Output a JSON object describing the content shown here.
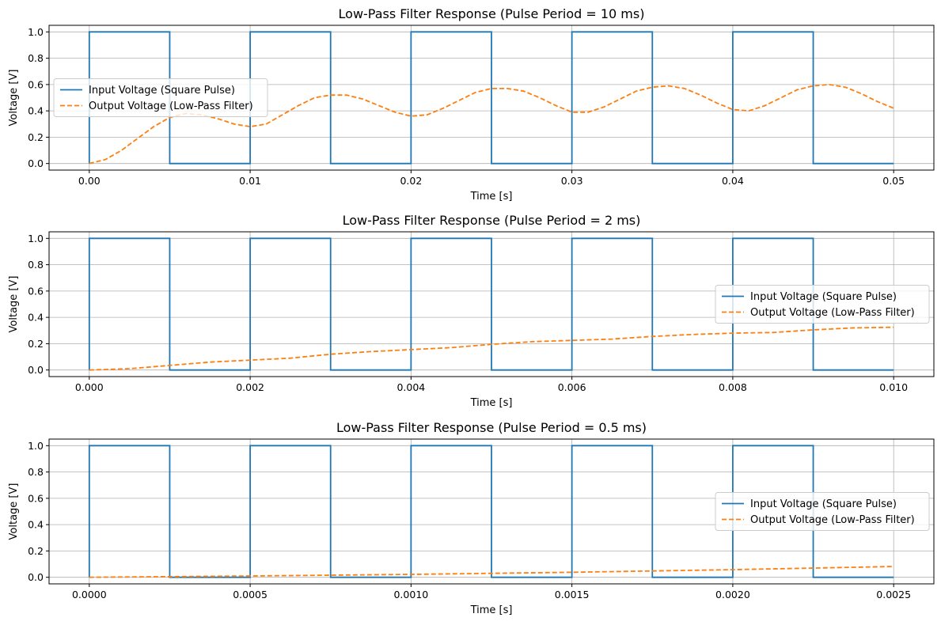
{
  "chart_data": [
    {
      "type": "line",
      "title": "Low-Pass Filter Response (Pulse Period = 10 ms)",
      "xlabel": "Time [s]",
      "ylabel": "Voltage [V]",
      "xlim": [
        -0.0025,
        0.0525
      ],
      "ylim": [
        -0.05,
        1.05
      ],
      "xticks": [
        0.0,
        0.01,
        0.02,
        0.03,
        0.04,
        0.05
      ],
      "xtick_labels": [
        "0.00",
        "0.01",
        "0.02",
        "0.03",
        "0.04",
        "0.05"
      ],
      "yticks": [
        0.0,
        0.2,
        0.4,
        0.6,
        0.8,
        1.0
      ],
      "ytick_labels": [
        "0.0",
        "0.2",
        "0.4",
        "0.6",
        "0.8",
        "1.0"
      ],
      "grid": true,
      "legend_position": "center-left",
      "series": [
        {
          "name": "Input Voltage (Square Pulse)",
          "style": "solid",
          "color": "#1f77b4",
          "x": [
            0,
            0,
            0.005,
            0.005,
            0.01,
            0.01,
            0.015,
            0.015,
            0.02,
            0.02,
            0.025,
            0.025,
            0.03,
            0.03,
            0.035,
            0.035,
            0.04,
            0.04,
            0.045,
            0.045,
            0.05
          ],
          "y": [
            0,
            1,
            1,
            0,
            0,
            1,
            1,
            0,
            0,
            1,
            1,
            0,
            0,
            1,
            1,
            0,
            0,
            1,
            1,
            0,
            0
          ]
        },
        {
          "name": "Output Voltage (Low-Pass Filter)",
          "style": "dashed",
          "color": "#ff7f0e",
          "x": [
            0,
            0.001,
            0.002,
            0.003,
            0.004,
            0.005,
            0.006,
            0.007,
            0.008,
            0.009,
            0.01,
            0.011,
            0.012,
            0.013,
            0.014,
            0.015,
            0.016,
            0.017,
            0.018,
            0.019,
            0.02,
            0.021,
            0.022,
            0.023,
            0.024,
            0.025,
            0.026,
            0.027,
            0.028,
            0.029,
            0.03,
            0.031,
            0.032,
            0.033,
            0.034,
            0.035,
            0.036,
            0.037,
            0.038,
            0.039,
            0.04,
            0.041,
            0.042,
            0.043,
            0.044,
            0.045,
            0.046,
            0.047,
            0.048,
            0.049,
            0.05
          ],
          "y": [
            0,
            0.03,
            0.1,
            0.19,
            0.28,
            0.35,
            0.38,
            0.37,
            0.34,
            0.3,
            0.28,
            0.3,
            0.37,
            0.44,
            0.5,
            0.52,
            0.52,
            0.49,
            0.44,
            0.39,
            0.36,
            0.37,
            0.42,
            0.48,
            0.54,
            0.57,
            0.57,
            0.55,
            0.5,
            0.44,
            0.39,
            0.39,
            0.43,
            0.49,
            0.55,
            0.58,
            0.59,
            0.57,
            0.52,
            0.46,
            0.41,
            0.4,
            0.44,
            0.5,
            0.56,
            0.59,
            0.6,
            0.58,
            0.53,
            0.47,
            0.42
          ]
        }
      ]
    },
    {
      "type": "line",
      "title": "Low-Pass Filter Response (Pulse Period = 2 ms)",
      "xlabel": "Time [s]",
      "ylabel": "Voltage [V]",
      "xlim": [
        -0.0005,
        0.0105
      ],
      "ylim": [
        -0.05,
        1.05
      ],
      "xticks": [
        0.0,
        0.002,
        0.004,
        0.006,
        0.008,
        0.01
      ],
      "xtick_labels": [
        "0.000",
        "0.002",
        "0.004",
        "0.006",
        "0.008",
        "0.010"
      ],
      "yticks": [
        0.0,
        0.2,
        0.4,
        0.6,
        0.8,
        1.0
      ],
      "ytick_labels": [
        "0.0",
        "0.2",
        "0.4",
        "0.6",
        "0.8",
        "1.0"
      ],
      "grid": true,
      "legend_position": "center-right",
      "series": [
        {
          "name": "Input Voltage (Square Pulse)",
          "style": "solid",
          "color": "#1f77b4",
          "x": [
            0,
            0,
            0.001,
            0.001,
            0.002,
            0.002,
            0.003,
            0.003,
            0.004,
            0.004,
            0.005,
            0.005,
            0.006,
            0.006,
            0.007,
            0.007,
            0.008,
            0.008,
            0.009,
            0.009,
            0.01
          ],
          "y": [
            0,
            1,
            1,
            0,
            0,
            1,
            1,
            0,
            0,
            1,
            1,
            0,
            0,
            1,
            1,
            0,
            0,
            1,
            1,
            0,
            0
          ]
        },
        {
          "name": "Output Voltage (Low-Pass Filter)",
          "style": "dashed",
          "color": "#ff7f0e",
          "x": [
            0,
            0.0005,
            0.001,
            0.0015,
            0.002,
            0.0025,
            0.003,
            0.0035,
            0.004,
            0.0045,
            0.005,
            0.0055,
            0.006,
            0.0065,
            0.007,
            0.0075,
            0.008,
            0.0085,
            0.009,
            0.0095,
            0.01
          ],
          "y": [
            0,
            0.01,
            0.035,
            0.06,
            0.075,
            0.09,
            0.12,
            0.14,
            0.155,
            0.17,
            0.195,
            0.215,
            0.225,
            0.235,
            0.255,
            0.27,
            0.28,
            0.285,
            0.305,
            0.32,
            0.325
          ]
        }
      ]
    },
    {
      "type": "line",
      "title": "Low-Pass Filter Response (Pulse Period = 0.5 ms)",
      "xlabel": "Time [s]",
      "ylabel": "Voltage [V]",
      "xlim": [
        -0.000125,
        0.002625
      ],
      "ylim": [
        -0.05,
        1.05
      ],
      "xticks": [
        0.0,
        0.0005,
        0.001,
        0.0015,
        0.002,
        0.0025
      ],
      "xtick_labels": [
        "0.0000",
        "0.0005",
        "0.0010",
        "0.0015",
        "0.0020",
        "0.0025"
      ],
      "yticks": [
        0.0,
        0.2,
        0.4,
        0.6,
        0.8,
        1.0
      ],
      "ytick_labels": [
        "0.0",
        "0.2",
        "0.4",
        "0.6",
        "0.8",
        "1.0"
      ],
      "grid": true,
      "legend_position": "center-right",
      "series": [
        {
          "name": "Input Voltage (Square Pulse)",
          "style": "solid",
          "color": "#1f77b4",
          "x": [
            0,
            0,
            0.00025,
            0.00025,
            0.0005,
            0.0005,
            0.00075,
            0.00075,
            0.001,
            0.001,
            0.00125,
            0.00125,
            0.0015,
            0.0015,
            0.00175,
            0.00175,
            0.002,
            0.002,
            0.00225,
            0.00225,
            0.0025
          ],
          "y": [
            0,
            1,
            1,
            0,
            0,
            1,
            1,
            0,
            0,
            1,
            1,
            0,
            0,
            1,
            1,
            0,
            0,
            1,
            1,
            0,
            0
          ]
        },
        {
          "name": "Output Voltage (Low-Pass Filter)",
          "style": "dashed",
          "color": "#ff7f0e",
          "x": [
            0,
            0.00025,
            0.0005,
            0.00075,
            0.001,
            0.00125,
            0.0015,
            0.00175,
            0.002,
            0.00225,
            0.0025
          ],
          "y": [
            0,
            0.005,
            0.01,
            0.016,
            0.022,
            0.03,
            0.038,
            0.048,
            0.058,
            0.07,
            0.082
          ]
        }
      ]
    }
  ]
}
